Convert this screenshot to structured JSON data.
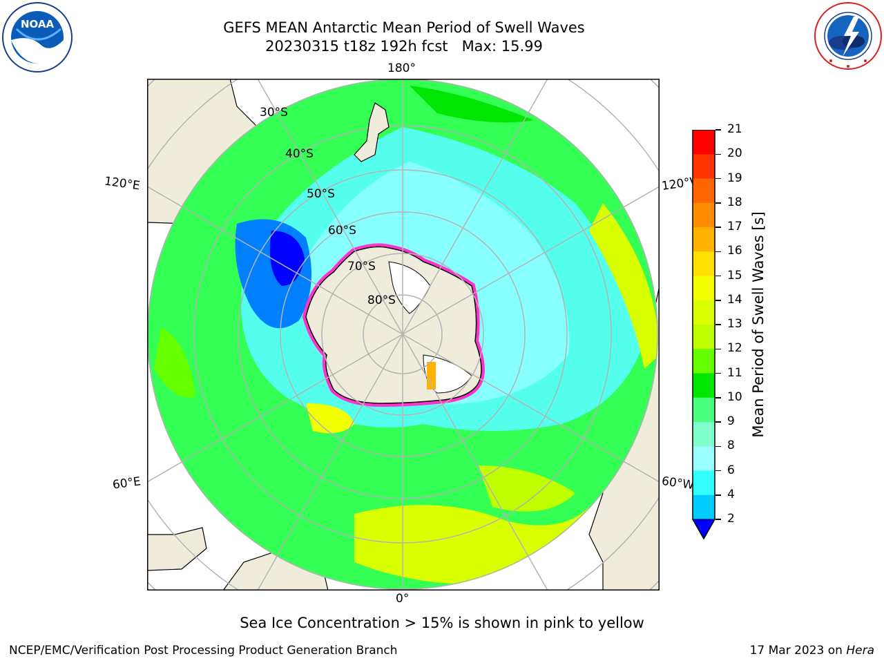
{
  "header": {
    "title_line1": "GEFS MEAN Antarctic Mean Period of Swell Waves",
    "title_line2": "20230315 t18z 192h fcst   Max: 15.99"
  },
  "logos": {
    "left": "NOAA",
    "left_ring_text": "NATIONAL OCEANIC AND ATMOSPHERIC ADMINISTRATION · U.S. DEPARTMENT OF COMMERCE",
    "right_ring_text": "NATIONAL WEATHER SERVICE"
  },
  "map": {
    "meridian_labels": {
      "top": "180°",
      "bottom": "0°",
      "upper_left": "120°E",
      "upper_right": "120°W",
      "lower_left": "60°E",
      "lower_right": "60°W"
    },
    "parallel_labels": [
      "30°S",
      "40°S",
      "50°S",
      "60°S",
      "70°S",
      "80°S"
    ]
  },
  "colorbar": {
    "title": "Mean Period of Swell Waves [s]",
    "ticks": [
      "21",
      "20",
      "19",
      "18",
      "17",
      "16",
      "15",
      "14",
      "13",
      "12",
      "11",
      "10",
      "9",
      "8",
      "6",
      "4",
      "2"
    ],
    "colors": [
      "#ff0000",
      "#ff3300",
      "#ff6600",
      "#ff8c00",
      "#ffb300",
      "#ffe000",
      "#f2ff00",
      "#d9ff00",
      "#bfff00",
      "#66ff00",
      "#00e600",
      "#4dff80",
      "#80ffcc",
      "#99ffff",
      "#33ffff",
      "#00ccff",
      "#0080ff",
      "#0000ff"
    ],
    "extend_color": "#0000ff"
  },
  "caption": "Sea Ice Concentration > 15% is shown in pink to yellow",
  "footer": {
    "left": "NCEP/EMC/Verification Post Processing Product Generation Branch",
    "right_prefix": "17 Mar 2023 on ",
    "right_host": "Hera"
  }
}
